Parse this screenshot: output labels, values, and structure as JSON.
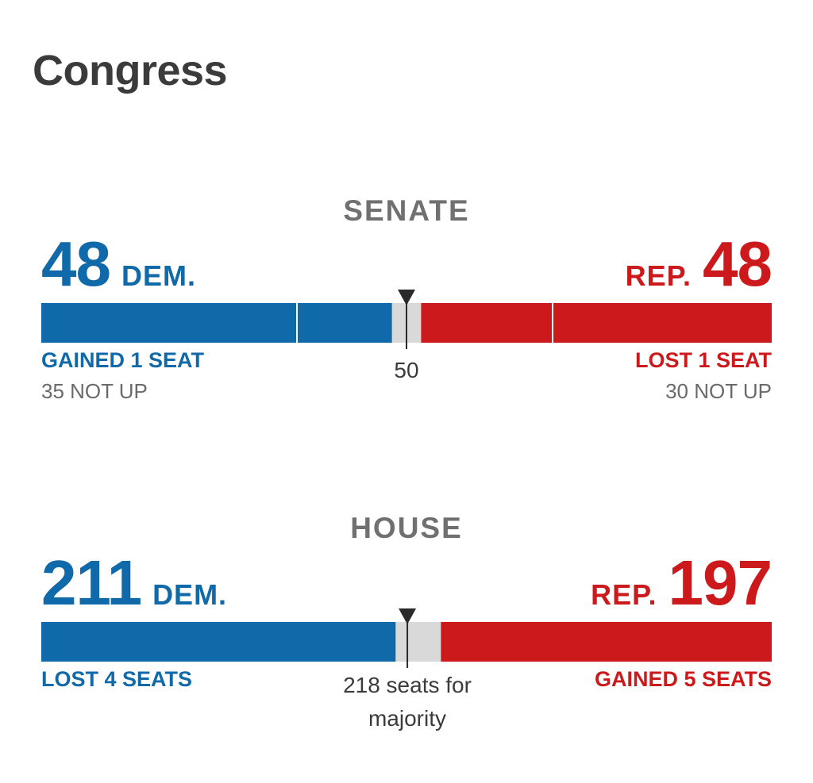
{
  "page": {
    "title": "Congress"
  },
  "colors": {
    "dem": "#1069a8",
    "rep": "#cc1a1c",
    "tossup": "#d9d9d9",
    "marker": "#2a2a2a"
  },
  "chart_data": [
    {
      "type": "bar",
      "title": "SENATE",
      "total_seats": 100,
      "majority_threshold": 50,
      "majority_label": "50",
      "dem": {
        "seats": 48,
        "label": "DEM.",
        "change": "GAINED 1 SEAT",
        "not_up": "35 NOT UP",
        "not_up_seats": 35
      },
      "rep": {
        "seats": 48,
        "label": "REP.",
        "change": "LOST 1 SEAT",
        "not_up": "30 NOT UP",
        "not_up_seats": 30
      },
      "undecided_seats": 4
    },
    {
      "type": "bar",
      "title": "HOUSE",
      "total_seats": 435,
      "majority_threshold": 218,
      "majority_label": "218 seats for majority",
      "dem": {
        "seats": 211,
        "label": "DEM.",
        "change": "LOST 4 SEATS"
      },
      "rep": {
        "seats": 197,
        "label": "REP.",
        "change": "GAINED 5 SEATS"
      },
      "undecided_seats": 27
    }
  ]
}
